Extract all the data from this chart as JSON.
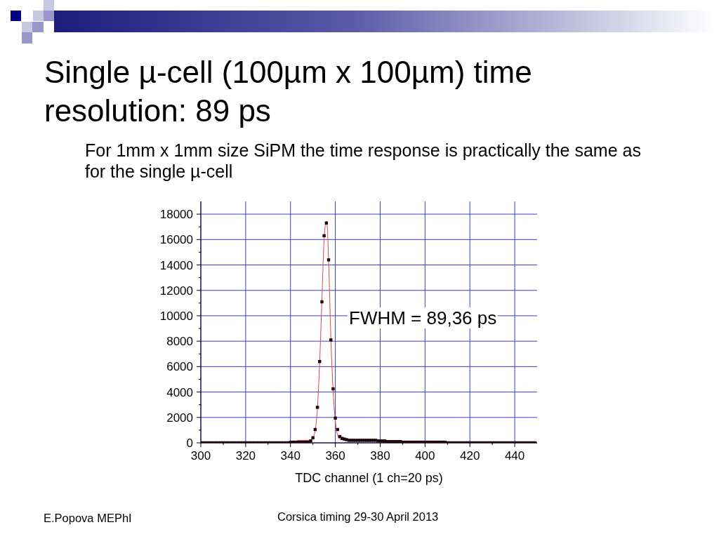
{
  "chart_data": {
    "type": "scatter",
    "title": "Single µ-cell (100µm x 100µm) time resolution: 89 ps",
    "subtitle": "For 1mm x 1mm size SiPM the time response is practically the same as for the single µ-cell",
    "xlabel": "TDC channel (1 ch=20 ps)",
    "annotations": [
      "FWHM = 89,36 ps",
      "E.Popova MEPhI",
      "Corsica timing 29-30 April 2013"
    ],
    "xlim": [
      300,
      450
    ],
    "ylim": [
      0,
      19000
    ],
    "xticks": [
      300,
      {
        "value": 310,
        "label": null
      },
      320,
      {
        "value": 330,
        "label": null
      },
      340,
      {
        "value": 350,
        "label": null
      },
      360,
      {
        "value": 370,
        "label": null
      },
      380,
      {
        "value": 390,
        "label": null
      },
      400,
      {
        "value": 410,
        "label": null
      },
      420,
      {
        "value": 430,
        "label": null
      },
      440
    ],
    "yticks": [
      0,
      {
        "value": 1000,
        "label": null
      },
      2000,
      {
        "value": 3000,
        "label": null
      },
      4000,
      {
        "value": 5000,
        "label": null
      },
      6000,
      {
        "value": 7000,
        "label": null
      },
      8000,
      {
        "value": 9000,
        "label": null
      },
      10000,
      {
        "value": 11000,
        "label": null
      },
      12000,
      {
        "value": 13000,
        "label": null
      },
      14000,
      {
        "value": 15000,
        "label": null
      },
      16000,
      {
        "value": 17000,
        "label": null
      },
      18000
    ],
    "grid": true,
    "marker": "square",
    "line_style": "solid",
    "series": [
      {
        "type": "line",
        "color": "#e04545",
        "marker": "none",
        "x": [
          343,
          348,
          349,
          350,
          351,
          352,
          353,
          354,
          355,
          355.5,
          356,
          356.5,
          357,
          358,
          359,
          360,
          361,
          362,
          363,
          364,
          368
        ],
        "values": [
          200,
          200,
          250,
          400,
          1000,
          2700,
          6300,
          11200,
          16100,
          17100,
          17450,
          16700,
          14300,
          8300,
          4100,
          1700,
          600,
          300,
          250,
          200,
          200
        ]
      },
      {
        "color": "#200808",
        "x": [
          300,
          301,
          302,
          303,
          304,
          305,
          306,
          307,
          308,
          309,
          310,
          311,
          312,
          313,
          314,
          315,
          316,
          317,
          318,
          319,
          320,
          321,
          322,
          323,
          324,
          325,
          326,
          327,
          328,
          329,
          330,
          331,
          332,
          333,
          334,
          335,
          336,
          337,
          338,
          339,
          340,
          341,
          342,
          343,
          344,
          345,
          346,
          347,
          348,
          349,
          350,
          351,
          352,
          353,
          354,
          355,
          356,
          357,
          358,
          359,
          360,
          361,
          362,
          363,
          364,
          365,
          366,
          367,
          368,
          369,
          370,
          371,
          372,
          373,
          374,
          375,
          376,
          377,
          378,
          379,
          380,
          381,
          382,
          383,
          384,
          385,
          386,
          387,
          388,
          389,
          390,
          391,
          392,
          393,
          394,
          395,
          396,
          397,
          398,
          399,
          400,
          401,
          402,
          403,
          404,
          405,
          406,
          407,
          408,
          409,
          410,
          411,
          412,
          413,
          414,
          415,
          416,
          417,
          418,
          419,
          420,
          421,
          422,
          423,
          424,
          425,
          426,
          427,
          428,
          429,
          430,
          431,
          432,
          433,
          434,
          435,
          436,
          437,
          438,
          439,
          440,
          441,
          442,
          443,
          444,
          445,
          446,
          447,
          448,
          449
        ],
        "values": [
          0,
          0,
          0,
          0,
          0,
          0,
          0,
          0,
          0,
          0,
          0,
          0,
          0,
          0,
          0,
          0,
          0,
          0,
          0,
          0,
          0,
          0,
          0,
          0,
          0,
          0,
          0,
          0,
          0,
          0,
          0,
          0,
          0,
          0,
          0,
          0,
          0,
          0,
          0,
          0,
          50,
          50,
          50,
          50,
          50,
          50,
          50,
          50,
          50,
          150,
          400,
          1050,
          2800,
          6400,
          11100,
          16300,
          17300,
          14400,
          8100,
          4250,
          1950,
          1050,
          500,
          350,
          300,
          250,
          200,
          200,
          200,
          200,
          200,
          200,
          200,
          200,
          200,
          200,
          200,
          200,
          200,
          150,
          150,
          150,
          150,
          100,
          100,
          100,
          100,
          100,
          100,
          100,
          50,
          50,
          50,
          50,
          50,
          50,
          50,
          50,
          50,
          50,
          50,
          50,
          50,
          50,
          50,
          50,
          50,
          50,
          50,
          50,
          0,
          0,
          0,
          0,
          0,
          0,
          0,
          0,
          0,
          0,
          0,
          0,
          0,
          0,
          0,
          0,
          0,
          0,
          0,
          0,
          0,
          0,
          0,
          0,
          0,
          0,
          0,
          0,
          0,
          0,
          0,
          0,
          0,
          0,
          0,
          0,
          0,
          0,
          0,
          0
        ]
      }
    ]
  }
}
